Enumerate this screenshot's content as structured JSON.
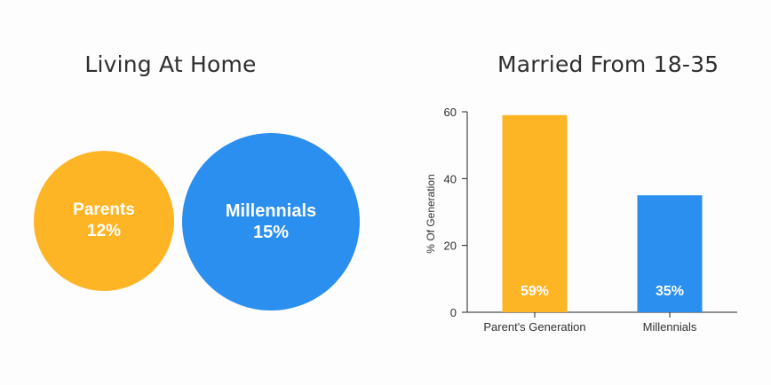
{
  "colors": {
    "parents": "#FDB525",
    "millennials": "#2A8FEE",
    "axis": "#222222",
    "text": "#2f2f2f"
  },
  "chart_data": [
    {
      "type": "bubble",
      "title": "Living At Home",
      "unit": "%",
      "items": [
        {
          "name": "Parents",
          "value": 12,
          "display": "12%",
          "color": "#FDB525"
        },
        {
          "name": "Millennials",
          "value": 15,
          "display": "15%",
          "color": "#2A8FEE"
        }
      ]
    },
    {
      "type": "bar",
      "title": "Married From 18-35",
      "categories": [
        "Parent's Generation",
        "Millennials"
      ],
      "values": [
        59,
        35
      ],
      "value_labels": [
        "59%",
        "35%"
      ],
      "colors": [
        "#FDB525",
        "#2A8FEE"
      ],
      "xlabel": "",
      "ylabel": "% Of Generation",
      "ylim": [
        0,
        60
      ],
      "yticks": [
        0,
        20,
        40,
        60
      ],
      "grid": false,
      "legend": "none"
    }
  ]
}
